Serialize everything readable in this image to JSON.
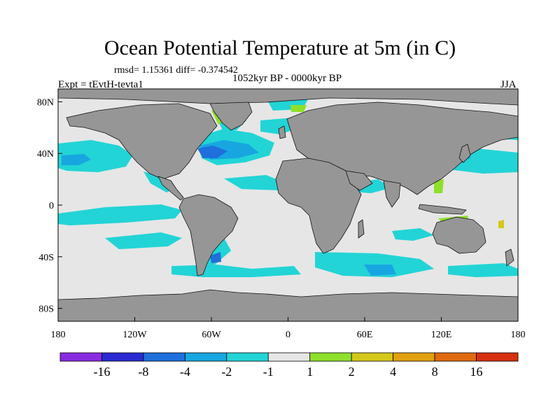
{
  "title": "Ocean Potential Temperature at 5m (in C)",
  "stats_text": "rmsd= 1.15361 diff= -0.374542",
  "period_text": "1052kyr BP - 0000kyr BP",
  "experiment_text": "Expt = tEvtH-tevta1",
  "season_text": "JJA",
  "map": {
    "projection": "cylindrical equidistant",
    "lon_range": [
      -180,
      180
    ],
    "lat_range": [
      -90,
      90
    ],
    "x_ticks": [
      {
        "lon": -180,
        "label": "180"
      },
      {
        "lon": -120,
        "label": "120W"
      },
      {
        "lon": -60,
        "label": "60W"
      },
      {
        "lon": 0,
        "label": "0"
      },
      {
        "lon": 60,
        "label": "60E"
      },
      {
        "lon": 120,
        "label": "120E"
      },
      {
        "lon": 180,
        "label": "180"
      }
    ],
    "y_ticks": [
      {
        "lat": 80,
        "label": "80N"
      },
      {
        "lat": 40,
        "label": "40N"
      },
      {
        "lat": 0,
        "label": "0"
      },
      {
        "lat": -40,
        "label": "40S"
      },
      {
        "lat": -80,
        "label": "80S"
      }
    ]
  },
  "colorbar": {
    "boundaries": [
      "-16",
      "-8",
      "-4",
      "-2",
      "-1",
      "1",
      "2",
      "4",
      "8",
      "16"
    ],
    "colors": [
      "#8a2be2",
      "#2a2ad2",
      "#1f6fdc",
      "#18a6e0",
      "#22d4d6",
      "#e6e6e6",
      "#8ee02a",
      "#d4c81a",
      "#e2a010",
      "#e06a10",
      "#d83010"
    ]
  },
  "colors": {
    "land": "#969696",
    "ocean_neutral": "#e6e6e6",
    "cyan": "#22d4d6",
    "light_blue": "#18a6e0",
    "blue": "#1f6fdc",
    "dark_blue": "#2a2ad2",
    "green": "#8ee02a",
    "yellow": "#d4c81a"
  }
}
